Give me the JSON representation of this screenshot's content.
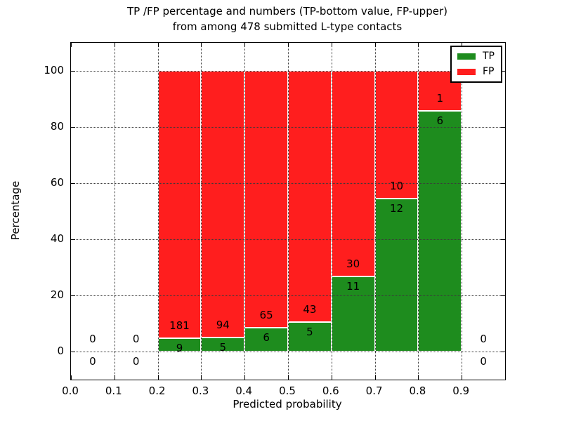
{
  "title": {
    "line1": "TP /FP percentage and numbers (TP-bottom value, FP-upper)",
    "line2": "from among 478 submitted L-type contacts"
  },
  "axes": {
    "xlabel": "Predicted probability",
    "ylabel": "Percentage",
    "xtick_labels": [
      "0.0",
      "0.1",
      "0.2",
      "0.3",
      "0.4",
      "0.5",
      "0.6",
      "0.7",
      "0.8",
      "0.9"
    ],
    "xtick_values": [
      0.0,
      0.1,
      0.2,
      0.3,
      0.4,
      0.5,
      0.6,
      0.7,
      0.8,
      0.9
    ],
    "ytick_labels": [
      "0",
      "20",
      "40",
      "60",
      "80",
      "100"
    ],
    "ytick_values": [
      0,
      20,
      40,
      60,
      80,
      100
    ],
    "xlim": [
      0.0,
      1.0
    ],
    "ylim": [
      -10,
      110
    ],
    "grid": "dotted"
  },
  "legend": {
    "position": "upper-right",
    "items": [
      {
        "label": "TP",
        "color": "#1e8c1e"
      },
      {
        "label": "FP",
        "color": "#ff1e1e"
      }
    ]
  },
  "chart_data": {
    "type": "bar",
    "stacked": true,
    "normalization": "each non-empty bin stacked to 100%",
    "title": "TP /FP percentage and numbers (TP-bottom value, FP-upper) from among 478 submitted L-type contacts",
    "xlabel": "Predicted probability",
    "ylabel": "Percentage",
    "xlim": [
      0.0,
      1.0
    ],
    "ylim": [
      -10,
      110
    ],
    "legend_position": "upper right",
    "grid": true,
    "bin_width": 0.1,
    "bin_starts": [
      0.0,
      0.1,
      0.2,
      0.3,
      0.4,
      0.5,
      0.6,
      0.7,
      0.8,
      0.9
    ],
    "series": [
      {
        "name": "TP",
        "color": "#1e8c1e",
        "counts": [
          0,
          0,
          9,
          5,
          6,
          5,
          11,
          12,
          6,
          0
        ]
      },
      {
        "name": "FP",
        "color": "#ff1e1e",
        "counts": [
          0,
          0,
          181,
          94,
          65,
          43,
          30,
          10,
          1,
          0
        ]
      }
    ],
    "tp_percent_by_bin": [
      null,
      null,
      4.74,
      5.05,
      8.45,
      10.42,
      26.83,
      54.55,
      85.71,
      null
    ],
    "annotation_rule": "FP count printed just above TP/FP boundary, TP count just below; empty bins show 0 above and 0 below the zero line"
  }
}
